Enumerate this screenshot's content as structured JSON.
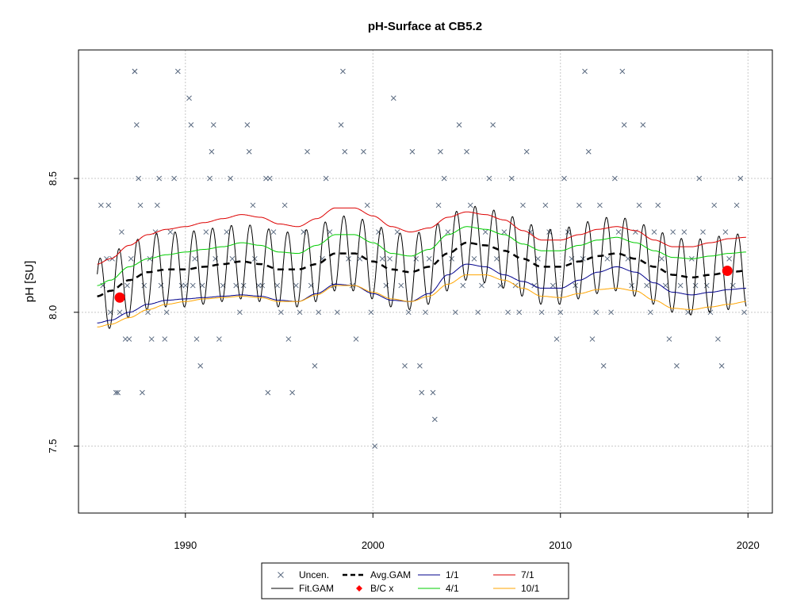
{
  "chart_data": {
    "type": "scatter",
    "title": "pH-Surface at CB5.2",
    "xlabel": "",
    "ylabel": "pH [SU]",
    "xlim": [
      1984.3,
      2021.3
    ],
    "ylim": [
      7.25,
      8.98
    ],
    "x_ticks": [
      1990,
      2000,
      2010,
      2020
    ],
    "x_tick_labels": [
      "1990",
      "2000",
      "2010",
      "2020"
    ],
    "y_ticks": [
      7.5,
      8.0,
      8.5
    ],
    "y_tick_labels": [
      "7.5",
      "8.0",
      "8.5"
    ],
    "grid": true,
    "legend_position": "bottom-center",
    "legend": [
      {
        "label": "Uncen.",
        "symbol": "x",
        "color": "#5a6a80"
      },
      {
        "label": "Avg.GAM",
        "symbol": "dashed-line",
        "color": "#000000"
      },
      {
        "label": "1/1",
        "symbol": "line",
        "color": "#00008b"
      },
      {
        "label": "7/1",
        "symbol": "line",
        "color": "#dd0000"
      },
      {
        "label": "Fit.GAM",
        "symbol": "line",
        "color": "#000000"
      },
      {
        "label": "B/C x",
        "symbol": "point",
        "color": "#ff0000"
      },
      {
        "label": "4/1",
        "symbol": "line",
        "color": "#00cc00"
      },
      {
        "label": "10/1",
        "symbol": "line",
        "color": "#ffa500"
      }
    ],
    "colors": {
      "points": "#5a6a80",
      "avg_gam": "#000000",
      "fit_gam": "#000000",
      "bc": "#ff0000",
      "jan1": "#00008b",
      "apr1": "#00cc00",
      "jul1": "#dd0000",
      "oct1": "#ffa500"
    },
    "bc_points": [
      {
        "x": 1986.5,
        "y": 8.055
      },
      {
        "x": 2018.9,
        "y": 8.155
      }
    ],
    "fit_gam": {
      "x_start": 1985.3,
      "x_end": 2019.9,
      "seasonal_amplitude": 0.14,
      "seasonal_phase_year": 0.45
    },
    "avg_gam": {
      "x": [
        1985.3,
        1986,
        1987,
        1988,
        1989,
        1990,
        1991,
        1992,
        1993,
        1994,
        1995,
        1996,
        1997,
        1998,
        1999,
        2000,
        2001,
        2002,
        2003,
        2004,
        2005,
        2006,
        2007,
        2008,
        2009,
        2010,
        2011,
        2012,
        2013,
        2014,
        2015,
        2016,
        2017,
        2018,
        2019,
        2019.9
      ],
      "y": [
        8.06,
        8.08,
        8.12,
        8.15,
        8.16,
        8.16,
        8.17,
        8.18,
        8.19,
        8.18,
        8.16,
        8.16,
        8.18,
        8.22,
        8.22,
        8.19,
        8.16,
        8.15,
        8.17,
        8.22,
        8.26,
        8.25,
        8.23,
        8.2,
        8.17,
        8.17,
        8.19,
        8.21,
        8.22,
        8.2,
        8.17,
        8.14,
        8.13,
        8.14,
        8.15,
        8.155
      ]
    },
    "quantile_lines": [
      {
        "name": "1/1",
        "color": "#00008b",
        "x": [
          1985.3,
          1986,
          1987,
          1988,
          1989,
          1990,
          1991,
          1992,
          1993,
          1994,
          1995,
          1996,
          1997,
          1998,
          1999,
          2000,
          2001,
          2002,
          2003,
          2004,
          2005,
          2006,
          2007,
          2008,
          2009,
          2010,
          2011,
          2012,
          2013,
          2014,
          2015,
          2016,
          2017,
          2018,
          2019,
          2019.9
        ],
        "y": [
          7.96,
          7.97,
          8.0,
          8.03,
          8.045,
          8.05,
          8.055,
          8.06,
          8.065,
          8.06,
          8.045,
          8.04,
          8.07,
          8.105,
          8.1,
          8.07,
          8.045,
          8.04,
          8.07,
          8.14,
          8.18,
          8.17,
          8.14,
          8.115,
          8.09,
          8.09,
          8.12,
          8.15,
          8.17,
          8.15,
          8.11,
          8.075,
          8.065,
          8.075,
          8.085,
          8.09
        ]
      },
      {
        "name": "4/1",
        "color": "#00cc00",
        "x": [
          1985.3,
          1986,
          1987,
          1988,
          1989,
          1990,
          1991,
          1992,
          1993,
          1994,
          1995,
          1996,
          1997,
          1998,
          1999,
          2000,
          2001,
          2002,
          2003,
          2004,
          2005,
          2006,
          2007,
          2008,
          2009,
          2010,
          2011,
          2012,
          2013,
          2014,
          2015,
          2016,
          2017,
          2018,
          2019,
          2019.9
        ],
        "y": [
          8.1,
          8.12,
          8.17,
          8.2,
          8.215,
          8.225,
          8.235,
          8.245,
          8.26,
          8.25,
          8.225,
          8.22,
          8.25,
          8.29,
          8.29,
          8.26,
          8.22,
          8.21,
          8.235,
          8.29,
          8.32,
          8.31,
          8.29,
          8.255,
          8.23,
          8.23,
          8.25,
          8.27,
          8.28,
          8.26,
          8.23,
          8.205,
          8.2,
          8.21,
          8.22,
          8.225
        ]
      },
      {
        "name": "7/1",
        "color": "#dd0000",
        "x": [
          1985.3,
          1986,
          1987,
          1988,
          1989,
          1990,
          1991,
          1992,
          1993,
          1994,
          1995,
          1996,
          1997,
          1998,
          1999,
          2000,
          2001,
          2002,
          2003,
          2004,
          2005,
          2006,
          2007,
          2008,
          2009,
          2010,
          2011,
          2012,
          2013,
          2014,
          2015,
          2016,
          2017,
          2018,
          2019,
          2019.9
        ],
        "y": [
          8.18,
          8.2,
          8.25,
          8.29,
          8.31,
          8.32,
          8.335,
          8.35,
          8.365,
          8.355,
          8.33,
          8.32,
          8.35,
          8.39,
          8.39,
          8.36,
          8.32,
          8.3,
          8.315,
          8.355,
          8.375,
          8.365,
          8.345,
          8.305,
          8.27,
          8.27,
          8.29,
          8.31,
          8.32,
          8.305,
          8.27,
          8.245,
          8.245,
          8.26,
          8.275,
          8.28
        ]
      },
      {
        "name": "10/1",
        "color": "#ffa500",
        "x": [
          1985.3,
          1986,
          1987,
          1988,
          1989,
          1990,
          1991,
          1992,
          1993,
          1994,
          1995,
          1996,
          1997,
          1998,
          1999,
          2000,
          2001,
          2002,
          2003,
          2004,
          2005,
          2006,
          2007,
          2008,
          2009,
          2010,
          2011,
          2012,
          2013,
          2014,
          2015,
          2016,
          2017,
          2018,
          2019,
          2019.9
        ],
        "y": [
          7.945,
          7.955,
          7.98,
          8.01,
          8.03,
          8.04,
          8.05,
          8.055,
          8.06,
          8.055,
          8.04,
          8.04,
          8.065,
          8.1,
          8.1,
          8.075,
          8.05,
          8.04,
          8.06,
          8.105,
          8.14,
          8.14,
          8.12,
          8.09,
          8.06,
          8.055,
          8.07,
          8.085,
          8.09,
          8.08,
          8.045,
          8.015,
          8.01,
          8.02,
          8.03,
          8.04
        ]
      }
    ],
    "observations": [
      [
        1985.5,
        8.4
      ],
      [
        1985.6,
        8.1
      ],
      [
        1985.8,
        8.2
      ],
      [
        1985.9,
        8.4
      ],
      [
        1986.0,
        8.0
      ],
      [
        1986.1,
        8.2
      ],
      [
        1986.3,
        7.7
      ],
      [
        1986.4,
        7.7
      ],
      [
        1986.5,
        8.0
      ],
      [
        1986.6,
        8.3
      ],
      [
        1986.8,
        7.9
      ],
      [
        1986.9,
        8.1
      ],
      [
        1987.0,
        7.9
      ],
      [
        1987.1,
        8.2
      ],
      [
        1987.3,
        8.9
      ],
      [
        1987.3,
        8.9
      ],
      [
        1987.4,
        8.7
      ],
      [
        1987.5,
        8.5
      ],
      [
        1987.6,
        8.4
      ],
      [
        1987.7,
        7.7
      ],
      [
        1987.8,
        8.1
      ],
      [
        1988.0,
        8.0
      ],
      [
        1988.1,
        8.2
      ],
      [
        1988.2,
        7.9
      ],
      [
        1988.4,
        8.3
      ],
      [
        1988.5,
        8.4
      ],
      [
        1988.6,
        8.5
      ],
      [
        1988.7,
        8.1
      ],
      [
        1988.9,
        7.9
      ],
      [
        1989.0,
        8.0
      ],
      [
        1989.2,
        8.3
      ],
      [
        1989.4,
        8.5
      ],
      [
        1989.6,
        8.9
      ],
      [
        1989.8,
        8.1
      ],
      [
        1990.0,
        8.1
      ],
      [
        1990.2,
        8.8
      ],
      [
        1990.3,
        8.7
      ],
      [
        1990.4,
        8.1
      ],
      [
        1990.5,
        8.2
      ],
      [
        1990.6,
        7.9
      ],
      [
        1990.8,
        7.8
      ],
      [
        1990.9,
        8.1
      ],
      [
        1991.1,
        8.3
      ],
      [
        1991.3,
        8.5
      ],
      [
        1991.4,
        8.6
      ],
      [
        1991.5,
        8.7
      ],
      [
        1991.6,
        8.2
      ],
      [
        1991.8,
        7.9
      ],
      [
        1992.0,
        8.1
      ],
      [
        1992.2,
        8.3
      ],
      [
        1992.4,
        8.5
      ],
      [
        1992.5,
        8.2
      ],
      [
        1992.7,
        8.1
      ],
      [
        1992.9,
        8.0
      ],
      [
        1993.1,
        8.1
      ],
      [
        1993.3,
        8.7
      ],
      [
        1993.4,
        8.6
      ],
      [
        1993.6,
        8.4
      ],
      [
        1993.7,
        8.2
      ],
      [
        1993.9,
        8.1
      ],
      [
        1994.1,
        8.1
      ],
      [
        1994.3,
        8.5
      ],
      [
        1994.4,
        7.7
      ],
      [
        1994.5,
        8.5
      ],
      [
        1994.7,
        8.3
      ],
      [
        1994.9,
        8.1
      ],
      [
        1995.1,
        8.0
      ],
      [
        1995.3,
        8.4
      ],
      [
        1995.5,
        7.9
      ],
      [
        1995.7,
        7.7
      ],
      [
        1995.9,
        8.1
      ],
      [
        1996.1,
        8.0
      ],
      [
        1996.3,
        8.3
      ],
      [
        1996.5,
        8.6
      ],
      [
        1996.7,
        8.1
      ],
      [
        1996.9,
        7.8
      ],
      [
        1997.1,
        8.0
      ],
      [
        1997.3,
        8.2
      ],
      [
        1997.5,
        8.5
      ],
      [
        1997.7,
        8.3
      ],
      [
        1997.9,
        8.1
      ],
      [
        1998.1,
        8.0
      ],
      [
        1998.3,
        8.7
      ],
      [
        1998.4,
        8.9
      ],
      [
        1998.5,
        8.6
      ],
      [
        1998.7,
        8.2
      ],
      [
        1998.9,
        8.1
      ],
      [
        1999.1,
        7.9
      ],
      [
        1999.3,
        8.2
      ],
      [
        1999.5,
        8.6
      ],
      [
        1999.7,
        8.4
      ],
      [
        1999.9,
        8.0
      ],
      [
        2000.1,
        7.5
      ],
      [
        2000.3,
        8.3
      ],
      [
        2000.5,
        8.2
      ],
      [
        2000.7,
        8.1
      ],
      [
        2000.9,
        8.2
      ],
      [
        2001.1,
        8.8
      ],
      [
        2001.3,
        8.3
      ],
      [
        2001.5,
        8.1
      ],
      [
        2001.7,
        7.8
      ],
      [
        2001.9,
        8.0
      ],
      [
        2002.1,
        8.6
      ],
      [
        2002.3,
        8.2
      ],
      [
        2002.5,
        7.8
      ],
      [
        2002.6,
        7.7
      ],
      [
        2002.8,
        8.0
      ],
      [
        2003.0,
        8.2
      ],
      [
        2003.2,
        7.7
      ],
      [
        2003.3,
        7.6
      ],
      [
        2003.5,
        8.4
      ],
      [
        2003.6,
        8.6
      ],
      [
        2003.8,
        8.5
      ],
      [
        2004.0,
        8.3
      ],
      [
        2004.2,
        8.2
      ],
      [
        2004.4,
        8.0
      ],
      [
        2004.6,
        8.7
      ],
      [
        2004.8,
        8.1
      ],
      [
        2005.0,
        8.6
      ],
      [
        2005.2,
        8.4
      ],
      [
        2005.4,
        8.2
      ],
      [
        2005.6,
        8.0
      ],
      [
        2005.8,
        8.1
      ],
      [
        2006.0,
        8.3
      ],
      [
        2006.2,
        8.5
      ],
      [
        2006.4,
        8.7
      ],
      [
        2006.6,
        8.2
      ],
      [
        2006.8,
        8.1
      ],
      [
        2007.0,
        8.3
      ],
      [
        2007.2,
        8.0
      ],
      [
        2007.4,
        8.5
      ],
      [
        2007.6,
        8.1
      ],
      [
        2007.8,
        8.0
      ],
      [
        2008.0,
        8.4
      ],
      [
        2008.2,
        8.6
      ],
      [
        2008.4,
        8.3
      ],
      [
        2008.6,
        8.1
      ],
      [
        2008.8,
        8.2
      ],
      [
        2009.0,
        8.0
      ],
      [
        2009.2,
        8.4
      ],
      [
        2009.4,
        8.3
      ],
      [
        2009.6,
        8.1
      ],
      [
        2009.8,
        7.9
      ],
      [
        2010.0,
        8.0
      ],
      [
        2010.2,
        8.5
      ],
      [
        2010.4,
        8.3
      ],
      [
        2010.6,
        8.2
      ],
      [
        2010.8,
        8.1
      ],
      [
        2011.0,
        8.4
      ],
      [
        2011.2,
        8.2
      ],
      [
        2011.3,
        8.9
      ],
      [
        2011.5,
        8.6
      ],
      [
        2011.7,
        7.9
      ],
      [
        2011.9,
        8.0
      ],
      [
        2012.1,
        8.4
      ],
      [
        2012.3,
        7.8
      ],
      [
        2012.5,
        8.2
      ],
      [
        2012.7,
        8.0
      ],
      [
        2012.9,
        8.5
      ],
      [
        2013.1,
        8.3
      ],
      [
        2013.3,
        8.9
      ],
      [
        2013.4,
        8.7
      ],
      [
        2013.6,
        8.2
      ],
      [
        2013.8,
        8.1
      ],
      [
        2014.0,
        8.3
      ],
      [
        2014.2,
        8.4
      ],
      [
        2014.4,
        8.7
      ],
      [
        2014.6,
        8.1
      ],
      [
        2014.8,
        8.0
      ],
      [
        2015.0,
        8.3
      ],
      [
        2015.2,
        8.4
      ],
      [
        2015.4,
        8.2
      ],
      [
        2015.6,
        8.1
      ],
      [
        2015.8,
        7.9
      ],
      [
        2016.0,
        8.3
      ],
      [
        2016.2,
        7.8
      ],
      [
        2016.4,
        8.1
      ],
      [
        2016.6,
        8.3
      ],
      [
        2016.8,
        8.0
      ],
      [
        2017.0,
        8.2
      ],
      [
        2017.2,
        8.1
      ],
      [
        2017.4,
        8.5
      ],
      [
        2017.6,
        8.3
      ],
      [
        2017.8,
        8.1
      ],
      [
        2018.0,
        8.0
      ],
      [
        2018.2,
        8.4
      ],
      [
        2018.4,
        7.9
      ],
      [
        2018.6,
        7.8
      ],
      [
        2018.8,
        8.3
      ],
      [
        2019.0,
        8.2
      ],
      [
        2019.2,
        8.1
      ],
      [
        2019.4,
        8.4
      ],
      [
        2019.6,
        8.5
      ],
      [
        2019.8,
        8.0
      ]
    ]
  }
}
